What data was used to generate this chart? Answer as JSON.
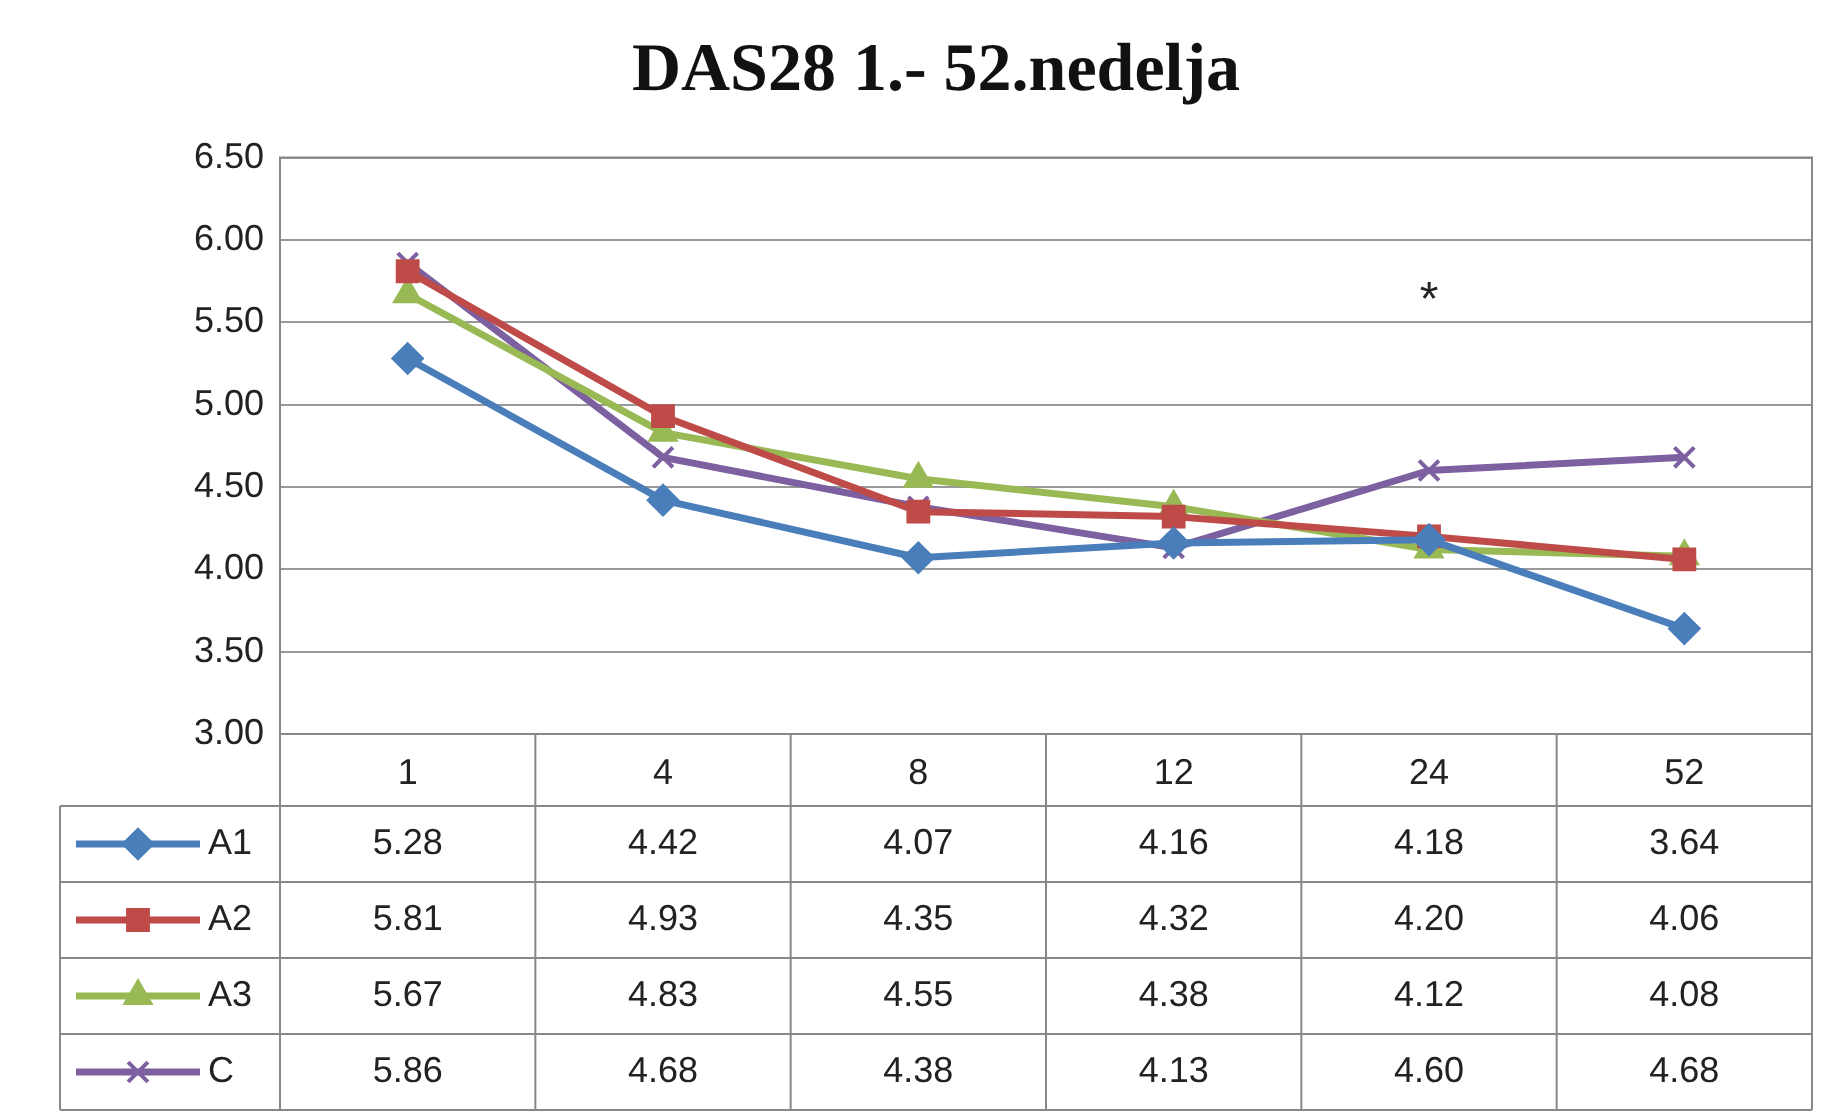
{
  "chart_data": {
    "type": "line",
    "title": "DAS28 1.- 52.nedelja",
    "categories": [
      "1",
      "4",
      "8",
      "12",
      "24",
      "52"
    ],
    "ylim": [
      3,
      6.5
    ],
    "yticks": [
      {
        "value": 3,
        "label": "3.00"
      },
      {
        "value": 3.5,
        "label": "3.50"
      },
      {
        "value": 4,
        "label": "4.00"
      },
      {
        "value": 4.5,
        "label": "4.50"
      },
      {
        "value": 5,
        "label": "5.00"
      },
      {
        "value": 5.5,
        "label": "5.50"
      },
      {
        "value": 6,
        "label": "6.00"
      },
      {
        "value": 6.5,
        "label": "6.50"
      }
    ],
    "grid": "y",
    "legend": "bottom",
    "line_style": "solid",
    "series": [
      {
        "name": "A1",
        "color": "#4a7ebb",
        "marker": "diamond",
        "values": [
          5.28,
          4.42,
          4.07,
          4.16,
          4.18,
          3.64
        ],
        "value_labels": [
          "5.28",
          "4.42",
          "4.07",
          "4.16",
          "4.18",
          "3.64"
        ]
      },
      {
        "name": "A2",
        "color": "#be4b48",
        "marker": "square",
        "values": [
          5.81,
          4.93,
          4.35,
          4.32,
          4.2,
          4.06
        ],
        "value_labels": [
          "5.81",
          "4.93",
          "4.35",
          "4.32",
          "4.20",
          "4.06"
        ]
      },
      {
        "name": "A3",
        "color": "#98b954",
        "marker": "triangle",
        "values": [
          5.67,
          4.83,
          4.55,
          4.38,
          4.12,
          4.08
        ],
        "value_labels": [
          "5.67",
          "4.83",
          "4.55",
          "4.38",
          "4.12",
          "4.08"
        ]
      },
      {
        "name": "C",
        "color": "#7d60a0",
        "marker": "cross",
        "values": [
          5.86,
          4.68,
          4.38,
          4.13,
          4.6,
          4.68
        ],
        "value_labels": [
          "5.86",
          "4.68",
          "4.38",
          "4.13",
          "4.60",
          "4.68"
        ]
      }
    ],
    "annotations": [
      "*"
    ]
  }
}
